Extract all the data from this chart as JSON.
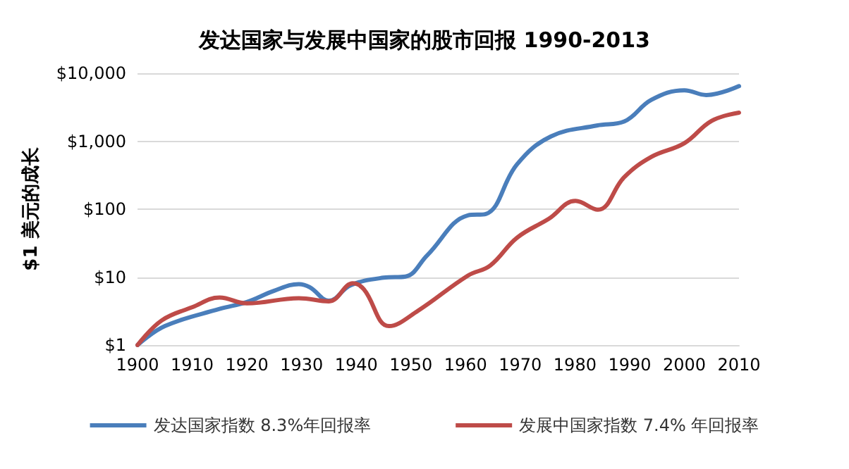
{
  "chart_data": {
    "type": "line",
    "title": "发达国家与发展中国家的股市回报 1990-2013",
    "ylabel": "$1 美元的成长",
    "log": "y",
    "grid": "y",
    "legend": "bottom",
    "marker": "none",
    "line_style": "solid",
    "xlim": [
      1900,
      2010
    ],
    "xticks": [
      1900,
      1910,
      1920,
      1930,
      1940,
      1950,
      1960,
      1970,
      1980,
      1990,
      2000,
      2010
    ],
    "ylim": [
      1,
      10000
    ],
    "yticks": [
      {
        "value": 1,
        "label": "$1"
      },
      {
        "value": 10,
        "label": "$10"
      },
      {
        "value": 100,
        "label": "$100"
      },
      {
        "value": 1000,
        "label": "$1,000"
      },
      {
        "value": 10000,
        "label": "$10,000"
      }
    ],
    "series": [
      {
        "name": "发达国家指数 8.3%年回报率",
        "color": "#4a7ebb",
        "x": [
          1900,
          1905,
          1915,
          1920,
          1925,
          1929.5,
          1931.5,
          1935,
          1939,
          1945,
          1949,
          1953,
          1960.4,
          1963.7,
          1969.4,
          1975.6,
          1984,
          1989,
          1994,
          2000,
          2004,
          2010
        ],
        "values": [
          1,
          1.9,
          3.4,
          4.3,
          6.3,
          7.9,
          7.1,
          4.5,
          7.6,
          9.8,
          10.2,
          21,
          81,
          85,
          457,
          1175,
          1700,
          1950,
          4074,
          5623,
          4786,
          6457
        ]
      },
      {
        "name": "发展中国家指数 7.4% 年回报率",
        "color": "#be4b48",
        "x": [
          1900,
          1904.4,
          1910,
          1915,
          1920,
          1929.5,
          1935,
          1939.4,
          1941.4,
          1946,
          1951.3,
          1960.4,
          1964.5,
          1969.4,
          1975.2,
          1980.1,
          1984.2,
          1989,
          1994,
          2000,
          2005,
          2010
        ],
        "values": [
          1,
          2.3,
          3.6,
          5.0,
          4.1,
          4.9,
          4.4,
          8.1,
          6.6,
          1.9,
          3.2,
          10.5,
          14.8,
          38,
          72,
          132,
          98,
          295,
          589,
          933,
          1995,
          2630
        ]
      }
    ]
  }
}
